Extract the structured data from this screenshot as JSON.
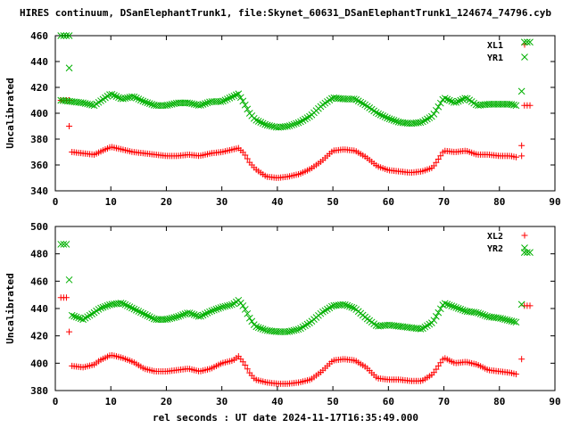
{
  "figure": {
    "title": "HIRES continuum, DSanElephantTrunk1, file:Skynet_60631_DSanElephantTrunk1_124674_74796.cyb",
    "xlabel": "rel seconds : UT date 2024-11-17T16:35:49.000"
  },
  "chart_data": [
    {
      "type": "scatter",
      "ylabel": "Uncalibrated",
      "xlim": [
        0,
        90
      ],
      "ylim": [
        340,
        460
      ],
      "xticks": [
        0,
        10,
        20,
        30,
        40,
        50,
        60,
        70,
        80,
        90
      ],
      "yticks": [
        340,
        360,
        380,
        400,
        420,
        440,
        460
      ],
      "legend_position": "top-right",
      "series": [
        {
          "name": "XL1",
          "marker": "plus",
          "color": "#ff0000",
          "points": [
            [
              1,
              410
            ],
            [
              1.5,
              410
            ],
            [
              2,
              410
            ],
            [
              2.5,
              410
            ],
            [
              2.5,
              390
            ],
            [
              84,
              375
            ],
            [
              84,
              367
            ],
            [
              84.5,
              406
            ],
            [
              85,
              406
            ],
            [
              85.5,
              406
            ]
          ],
          "profile_x": [
            3,
            5,
            7,
            8,
            10,
            12,
            14,
            16,
            18,
            20,
            22,
            24,
            26,
            28,
            30,
            32,
            33,
            34,
            35,
            36,
            38,
            40,
            42,
            44,
            46,
            48,
            50,
            52,
            54,
            56,
            58,
            60,
            62,
            64,
            66,
            68,
            70,
            72,
            74,
            76,
            78,
            80,
            82,
            83
          ],
          "profile_y": [
            370,
            369,
            368,
            370,
            374,
            372,
            370,
            369,
            368,
            367,
            367,
            368,
            367,
            369,
            370,
            372,
            373,
            369,
            362,
            357,
            351,
            350,
            351,
            353,
            357,
            363,
            371,
            372,
            371,
            366,
            359,
            356,
            355,
            354,
            355,
            358,
            371,
            370,
            371,
            368,
            368,
            367,
            367,
            366
          ]
        },
        {
          "name": "YR1",
          "marker": "cross",
          "color": "#00b000",
          "points": [
            [
              1,
              460
            ],
            [
              1.5,
              460
            ],
            [
              2,
              460
            ],
            [
              2.5,
              460
            ],
            [
              2.5,
              435
            ],
            [
              84,
              417
            ],
            [
              84.5,
              455
            ],
            [
              85,
              455
            ],
            [
              85.5,
              455
            ]
          ],
          "profile_x": [
            1,
            3,
            5,
            7,
            8,
            10,
            12,
            14,
            16,
            18,
            20,
            22,
            24,
            26,
            28,
            30,
            32,
            33,
            34,
            35,
            36,
            38,
            40,
            42,
            44,
            46,
            48,
            50,
            52,
            54,
            56,
            58,
            60,
            62,
            64,
            66,
            68,
            70,
            72,
            74,
            76,
            78,
            80,
            82,
            83
          ],
          "profile_y": [
            410,
            409,
            408,
            406,
            409,
            415,
            411,
            413,
            409,
            406,
            406,
            408,
            408,
            406,
            409,
            409,
            413,
            415,
            408,
            400,
            395,
            391,
            389,
            390,
            393,
            398,
            406,
            412,
            411,
            411,
            406,
            400,
            396,
            393,
            392,
            393,
            398,
            412,
            408,
            412,
            406,
            407,
            407,
            407,
            406
          ]
        }
      ]
    },
    {
      "type": "scatter",
      "ylabel": "Uncalibrated",
      "xlim": [
        0,
        90
      ],
      "ylim": [
        380,
        500
      ],
      "xticks": [
        0,
        10,
        20,
        30,
        40,
        50,
        60,
        70,
        80,
        90
      ],
      "yticks": [
        380,
        400,
        420,
        440,
        460,
        480,
        500
      ],
      "legend_position": "top-right",
      "series": [
        {
          "name": "XL2",
          "marker": "plus",
          "color": "#ff0000",
          "points": [
            [
              1,
              448
            ],
            [
              1.5,
              448
            ],
            [
              2,
              448
            ],
            [
              2.5,
              423
            ],
            [
              84,
              403
            ],
            [
              84.5,
              442
            ],
            [
              85,
              442
            ],
            [
              85.5,
              442
            ]
          ],
          "profile_x": [
            3,
            5,
            7,
            8,
            10,
            12,
            14,
            16,
            18,
            20,
            22,
            24,
            26,
            28,
            30,
            32,
            33,
            34,
            35,
            36,
            38,
            40,
            42,
            44,
            46,
            48,
            50,
            52,
            54,
            56,
            58,
            60,
            62,
            64,
            66,
            68,
            70,
            72,
            74,
            76,
            78,
            80,
            82,
            83
          ],
          "profile_y": [
            398,
            397,
            399,
            402,
            406,
            404,
            401,
            396,
            394,
            394,
            395,
            396,
            394,
            396,
            400,
            402,
            405,
            400,
            393,
            388,
            386,
            385,
            385,
            386,
            388,
            394,
            402,
            403,
            402,
            397,
            389,
            388,
            388,
            387,
            387,
            392,
            404,
            400,
            401,
            399,
            395,
            394,
            393,
            392
          ]
        },
        {
          "name": "YR2",
          "marker": "cross",
          "color": "#00b000",
          "points": [
            [
              1,
              487
            ],
            [
              1.5,
              487
            ],
            [
              2,
              487
            ],
            [
              2.5,
              461
            ],
            [
              84,
              443
            ],
            [
              84.5,
              481
            ],
            [
              85,
              481
            ],
            [
              85.5,
              481
            ]
          ],
          "profile_x": [
            3,
            5,
            7,
            8,
            10,
            12,
            14,
            16,
            18,
            20,
            22,
            24,
            26,
            28,
            30,
            32,
            33,
            34,
            35,
            36,
            38,
            40,
            42,
            44,
            46,
            48,
            50,
            52,
            54,
            56,
            58,
            60,
            62,
            64,
            66,
            68,
            70,
            72,
            74,
            76,
            78,
            80,
            82,
            83
          ],
          "profile_y": [
            435,
            432,
            437,
            440,
            443,
            444,
            440,
            436,
            432,
            432,
            434,
            437,
            434,
            438,
            441,
            443,
            446,
            441,
            433,
            427,
            424,
            423,
            423,
            425,
            430,
            437,
            442,
            443,
            440,
            433,
            427,
            428,
            427,
            426,
            425,
            430,
            444,
            441,
            438,
            437,
            434,
            433,
            431,
            430
          ]
        }
      ]
    }
  ]
}
